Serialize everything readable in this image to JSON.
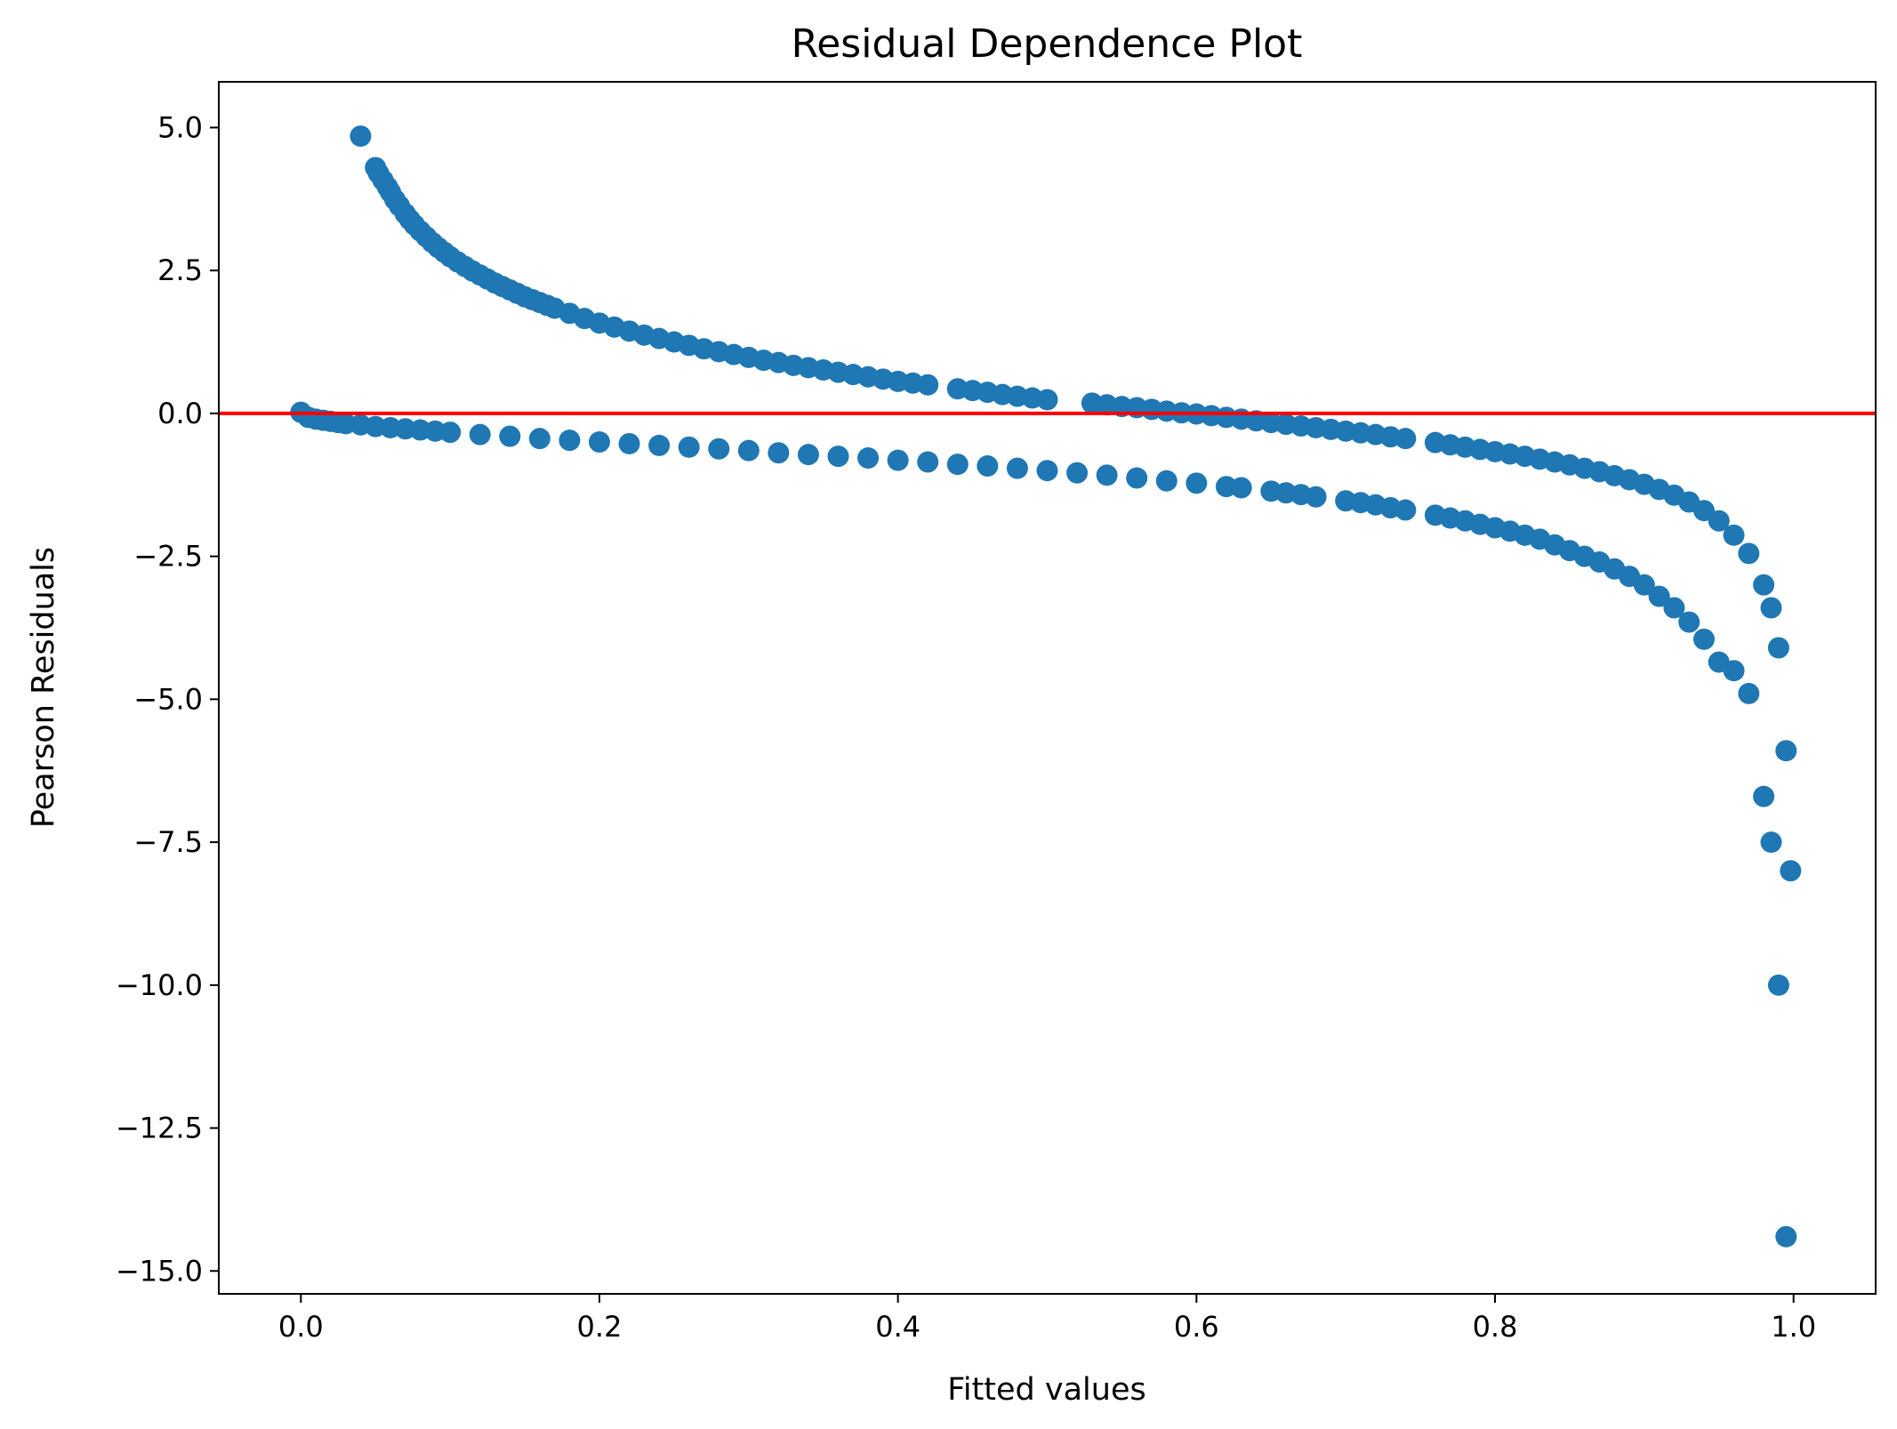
{
  "chart_data": {
    "type": "scatter",
    "title": "Residual Dependence Plot",
    "xlabel": "Fitted values",
    "ylabel": "Pearson Residuals",
    "xlim": [
      -0.055,
      1.055
    ],
    "ylim": [
      -15.4,
      5.8
    ],
    "xticks": [
      {
        "value": 0.0,
        "label": "0.0"
      },
      {
        "value": 0.2,
        "label": "0.2"
      },
      {
        "value": 0.4,
        "label": "0.4"
      },
      {
        "value": 0.6,
        "label": "0.6"
      },
      {
        "value": 0.8,
        "label": "0.8"
      },
      {
        "value": 1.0,
        "label": "1.0"
      }
    ],
    "yticks": [
      {
        "value": 5.0,
        "label": "5.0"
      },
      {
        "value": 2.5,
        "label": "2.5"
      },
      {
        "value": 0.0,
        "label": "0.0"
      },
      {
        "value": -2.5,
        "label": "−2.5"
      },
      {
        "value": -5.0,
        "label": "−5.0"
      },
      {
        "value": -7.5,
        "label": "−7.5"
      },
      {
        "value": -10.0,
        "label": "−10.0"
      },
      {
        "value": -12.5,
        "label": "−12.5"
      },
      {
        "value": -15.0,
        "label": "−15.0"
      }
    ],
    "grid": false,
    "reference_line": {
      "y": 0,
      "color": "#ff0000"
    },
    "marker_color": "#1f77b4",
    "series": [
      {
        "x": [
          0.04,
          0.05,
          0.052,
          0.055,
          0.058,
          0.06,
          0.063,
          0.066,
          0.07,
          0.073,
          0.076,
          0.08,
          0.084,
          0.088,
          0.092,
          0.096,
          0.1,
          0.105,
          0.11,
          0.115,
          0.12,
          0.125,
          0.13,
          0.135,
          0.14,
          0.145,
          0.15,
          0.155,
          0.16,
          0.165,
          0.17,
          0.18,
          0.19,
          0.2,
          0.21,
          0.22,
          0.23,
          0.24,
          0.25,
          0.26,
          0.27,
          0.28,
          0.29,
          0.3,
          0.31,
          0.32,
          0.33,
          0.34,
          0.35,
          0.36,
          0.37,
          0.38,
          0.39,
          0.4,
          0.41,
          0.42,
          0.44,
          0.45,
          0.46,
          0.47,
          0.48,
          0.49,
          0.5,
          0.53,
          0.54,
          0.55,
          0.56,
          0.57,
          0.58,
          0.59,
          0.6,
          0.61,
          0.62,
          0.63,
          0.64,
          0.65,
          0.66,
          0.67,
          0.68,
          0.69,
          0.7,
          0.71,
          0.72,
          0.73,
          0.74,
          0.76,
          0.77,
          0.78,
          0.79,
          0.8,
          0.81,
          0.82,
          0.83,
          0.84,
          0.85,
          0.86,
          0.87,
          0.88,
          0.89,
          0.9,
          0.91,
          0.92,
          0.93,
          0.94,
          0.95,
          0.96,
          0.97,
          0.98,
          0.985,
          0.99,
          0.995,
          0.998
        ],
        "y": [
          4.85,
          4.3,
          4.2,
          4.08,
          3.96,
          3.87,
          3.74,
          3.63,
          3.49,
          3.39,
          3.3,
          3.19,
          3.09,
          2.99,
          2.9,
          2.82,
          2.74,
          2.65,
          2.57,
          2.49,
          2.42,
          2.35,
          2.28,
          2.22,
          2.16,
          2.1,
          2.04,
          1.99,
          1.94,
          1.89,
          1.84,
          1.75,
          1.66,
          1.58,
          1.51,
          1.44,
          1.37,
          1.31,
          1.25,
          1.19,
          1.13,
          1.08,
          1.03,
          0.98,
          0.93,
          0.89,
          0.84,
          0.8,
          0.76,
          0.72,
          0.68,
          0.64,
          0.6,
          0.56,
          0.53,
          0.5,
          0.43,
          0.4,
          0.37,
          0.33,
          0.3,
          0.27,
          0.24,
          0.18,
          0.15,
          0.12,
          0.1,
          0.07,
          0.04,
          0.01,
          -0.01,
          -0.04,
          -0.07,
          -0.1,
          -0.13,
          -0.16,
          -0.19,
          -0.22,
          -0.25,
          -0.28,
          -0.31,
          -0.34,
          -0.37,
          -0.41,
          -0.44,
          -0.51,
          -0.55,
          -0.59,
          -0.63,
          -0.67,
          -0.71,
          -0.75,
          -0.8,
          -0.85,
          -0.9,
          -0.96,
          -1.02,
          -1.09,
          -1.16,
          -1.24,
          -1.33,
          -1.43,
          -1.55,
          -1.7,
          -1.88,
          -2.13,
          -2.45,
          -3.0,
          -3.4,
          -4.1,
          -5.9,
          -8.0
        ]
      },
      {
        "x": [
          0.0,
          0.005,
          0.01,
          0.015,
          0.02,
          0.025,
          0.03,
          0.04,
          0.05,
          0.06,
          0.07,
          0.08,
          0.09,
          0.1,
          0.12,
          0.14,
          0.16,
          0.18,
          0.2,
          0.22,
          0.24,
          0.26,
          0.28,
          0.3,
          0.32,
          0.34,
          0.36,
          0.38,
          0.4,
          0.42,
          0.44,
          0.46,
          0.48,
          0.5,
          0.52,
          0.54,
          0.56,
          0.58,
          0.6,
          0.62,
          0.63,
          0.65,
          0.66,
          0.67,
          0.68,
          0.7,
          0.71,
          0.72,
          0.73,
          0.74,
          0.76,
          0.77,
          0.78,
          0.79,
          0.8,
          0.81,
          0.82,
          0.83,
          0.84,
          0.85,
          0.86,
          0.87,
          0.88,
          0.89,
          0.9,
          0.91,
          0.92,
          0.93,
          0.94,
          0.95,
          0.96,
          0.97,
          0.98,
          0.985,
          0.99,
          0.995
        ],
        "y": [
          0.02,
          -0.07,
          -0.1,
          -0.12,
          -0.14,
          -0.16,
          -0.18,
          -0.2,
          -0.23,
          -0.25,
          -0.27,
          -0.29,
          -0.31,
          -0.33,
          -0.37,
          -0.4,
          -0.44,
          -0.47,
          -0.5,
          -0.53,
          -0.56,
          -0.59,
          -0.62,
          -0.65,
          -0.69,
          -0.72,
          -0.75,
          -0.78,
          -0.82,
          -0.85,
          -0.89,
          -0.92,
          -0.96,
          -1.0,
          -1.04,
          -1.08,
          -1.13,
          -1.18,
          -1.22,
          -1.28,
          -1.3,
          -1.36,
          -1.39,
          -1.42,
          -1.46,
          -1.53,
          -1.56,
          -1.6,
          -1.65,
          -1.69,
          -1.78,
          -1.83,
          -1.88,
          -1.94,
          -2.0,
          -2.06,
          -2.13,
          -2.2,
          -2.3,
          -2.4,
          -2.5,
          -2.6,
          -2.72,
          -2.85,
          -3.0,
          -3.2,
          -3.4,
          -3.65,
          -3.95,
          -4.35,
          -4.5,
          -4.9,
          -6.7,
          -7.5,
          -10.0,
          -14.4
        ]
      }
    ]
  }
}
